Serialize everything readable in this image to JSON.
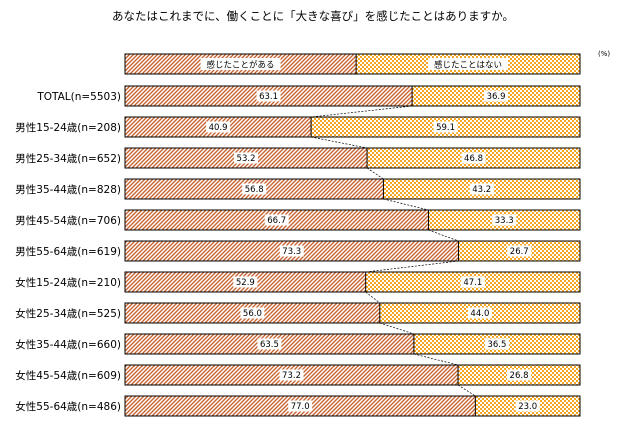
{
  "chart_data": {
    "type": "bar",
    "orientation": "horizontal",
    "stacked": "percent",
    "title": "あなたはこれまでに、働くことに「大きな喜び」を感じたことはありますか。",
    "unit": "(%)",
    "series": [
      {
        "name": "感じたことがある",
        "color": "#c86432",
        "pattern": "diagonal-hatch"
      },
      {
        "name": "感じたことはない",
        "color": "#f5a623",
        "pattern": "checker"
      }
    ],
    "categories": [
      "TOTAL(n=5503)",
      "男性15-24歳(n=208)",
      "男性25-34歳(n=652)",
      "男性35-44歳(n=828)",
      "男性45-54歳(n=706)",
      "男性55-64歳(n=619)",
      "女性15-24歳(n=210)",
      "女性25-34歳(n=525)",
      "女性35-44歳(n=660)",
      "女性45-54歳(n=609)",
      "女性55-64歳(n=486)"
    ],
    "values_yes": [
      63.1,
      40.9,
      53.2,
      56.8,
      66.7,
      73.3,
      52.9,
      56.0,
      63.5,
      73.2,
      77.0
    ],
    "values_no": [
      36.9,
      59.1,
      46.8,
      43.2,
      33.3,
      26.7,
      47.1,
      44.0,
      36.5,
      26.8,
      23.0
    ],
    "legend_split": 50.8,
    "xlim": [
      0,
      100
    ],
    "connector_lines": true
  }
}
